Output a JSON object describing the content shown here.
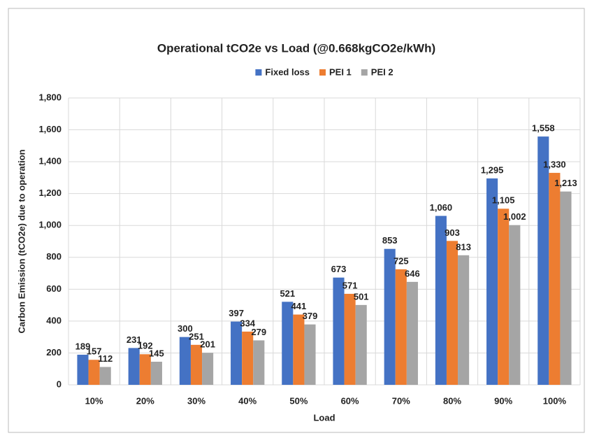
{
  "chart_data": {
    "type": "bar",
    "title": "Operational tCO2e vs Load (@0.668kgCO2e/kWh)",
    "x_label": "Load",
    "y_label": "Carbon Emission (tCO2e) due to operation",
    "categories": [
      "10%",
      "20%",
      "30%",
      "40%",
      "50%",
      "60%",
      "70%",
      "80%",
      "90%",
      "100%"
    ],
    "series": [
      {
        "name": "Fixed loss",
        "color": "#4472c4",
        "values": [
          189,
          231,
          300,
          397,
          521,
          673,
          853,
          1060,
          1295,
          1558
        ],
        "value_labels": [
          "189",
          "231",
          "300",
          "397",
          "521",
          "673",
          "853",
          "1,060",
          "1,295",
          "1,558"
        ]
      },
      {
        "name": "PEI 1",
        "color": "#ed7d31",
        "values": [
          157,
          192,
          251,
          334,
          441,
          571,
          725,
          903,
          1105,
          1330
        ],
        "value_labels": [
          "157",
          "192",
          "251",
          "334",
          "441",
          "571",
          "725",
          "903",
          "1,105",
          "1,330"
        ]
      },
      {
        "name": "PEI 2",
        "color": "#a5a5a5",
        "values": [
          112,
          145,
          201,
          279,
          379,
          501,
          646,
          813,
          1002,
          1213
        ],
        "value_labels": [
          "112",
          "145",
          "201",
          "279",
          "379",
          "501",
          "646",
          "813",
          "1,002",
          "1,213"
        ]
      }
    ],
    "ylim": [
      0,
      1800
    ],
    "yticks": [
      0,
      200,
      400,
      600,
      800,
      {
        "value": 1000,
        "label": "1,000"
      },
      {
        "value": 1200,
        "label": "1,200"
      },
      {
        "value": 1400,
        "label": "1,400"
      },
      {
        "value": 1600,
        "label": "1,600"
      },
      {
        "value": 1800,
        "label": "1,800"
      }
    ],
    "grid": true,
    "legend": "top"
  }
}
